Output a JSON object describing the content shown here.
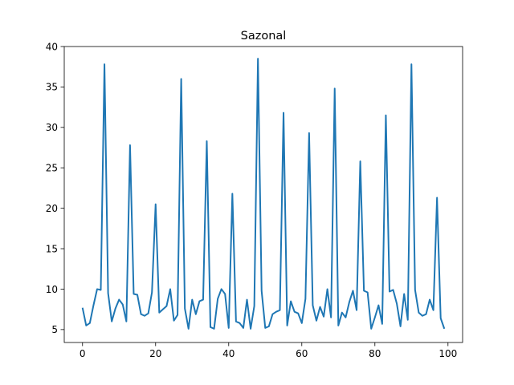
{
  "chart_data": {
    "type": "line",
    "title": "Sazonal",
    "xlabel": "",
    "ylabel": "",
    "xlim": [
      -5,
      104
    ],
    "ylim": [
      3.4,
      40
    ],
    "xticks": [
      0,
      20,
      40,
      60,
      80,
      100
    ],
    "yticks": [
      5,
      10,
      15,
      20,
      25,
      30,
      35,
      40
    ],
    "grid": false,
    "line_color": "#1f77b4",
    "series": [
      {
        "x": [
          0,
          1,
          2,
          3,
          4,
          5,
          6,
          7,
          8,
          9,
          10,
          11,
          12,
          13,
          14,
          15,
          16,
          17,
          18,
          19,
          20,
          21,
          22,
          23,
          24,
          25,
          26,
          27,
          28,
          29,
          30,
          31,
          32,
          33,
          34,
          35,
          36,
          37,
          38,
          39,
          40,
          41,
          42,
          43,
          44,
          45,
          46,
          47,
          48,
          49,
          50,
          51,
          52,
          53,
          54,
          55,
          56,
          57,
          58,
          59,
          60,
          61,
          62,
          63,
          64,
          65,
          66,
          67,
          68,
          69,
          70,
          71,
          72,
          73,
          74,
          75,
          76,
          77,
          78,
          79,
          80,
          81,
          82,
          83,
          84,
          85,
          86,
          87,
          88,
          89,
          90,
          91,
          92,
          93,
          94,
          95,
          96,
          97,
          98,
          99
        ],
        "values": [
          7.7,
          5.5,
          5.8,
          8.0,
          10.0,
          9.9,
          37.8,
          9.5,
          6.0,
          7.6,
          8.7,
          8.1,
          6.0,
          27.8,
          9.4,
          9.3,
          6.9,
          6.7,
          7.0,
          9.6,
          20.5,
          7.1,
          7.5,
          7.9,
          10.0,
          6.1,
          6.8,
          36.0,
          7.6,
          5.1,
          8.7,
          6.9,
          8.5,
          8.7,
          28.3,
          5.3,
          5.1,
          8.8,
          10.0,
          9.4,
          5.2,
          21.8,
          6.0,
          5.8,
          5.2,
          8.7,
          5.1,
          7.9,
          38.5,
          9.8,
          5.2,
          5.4,
          6.9,
          7.2,
          7.4,
          31.8,
          5.5,
          8.5,
          7.2,
          7.0,
          5.8,
          8.8,
          29.3,
          8.0,
          6.1,
          7.8,
          6.6,
          10.0,
          6.5,
          34.8,
          5.5,
          7.1,
          6.5,
          8.4,
          9.8,
          7.4,
          25.8,
          9.8,
          9.6,
          5.1,
          6.5,
          8.0,
          5.7,
          31.5,
          9.7,
          9.9,
          8.2,
          5.4,
          9.4,
          6.2,
          37.8,
          9.9,
          7.1,
          6.7,
          6.9,
          8.7,
          7.4,
          21.3,
          6.4,
          5.1
        ]
      }
    ]
  }
}
